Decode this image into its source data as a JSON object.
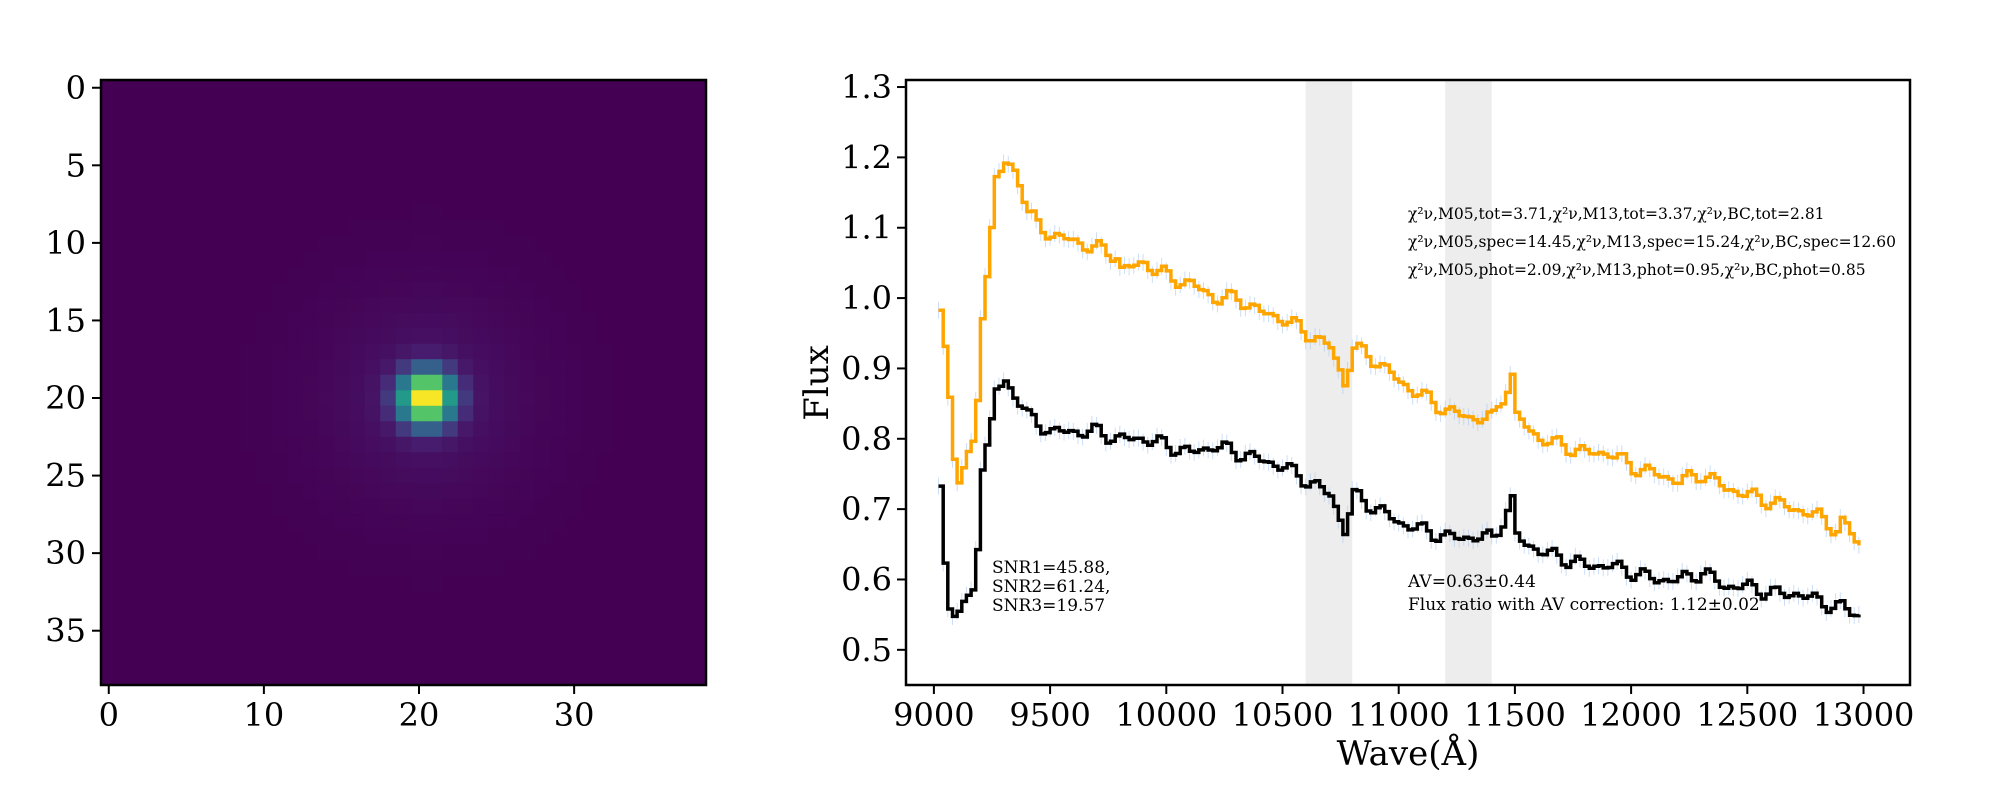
{
  "colors": {
    "model_a": "#ffa500",
    "model_b": "#000000",
    "errorbar": "#a8c8f0",
    "band": "#d3d3d3",
    "viridis_low": "#440154",
    "viridis_high": "#fde725"
  },
  "chart_data": [
    {
      "type": "heatmap",
      "colormap": "viridis",
      "size": [
        39,
        39
      ],
      "center": [
        20.5,
        20
      ],
      "xticks": [
        "0",
        "10",
        "20",
        "30"
      ],
      "yticks": [
        "0",
        "5",
        "10",
        "15",
        "20",
        "25",
        "30",
        "35"
      ],
      "xlim": [
        -0.5,
        38.5
      ],
      "ylim": [
        38.5,
        -0.5
      ]
    },
    {
      "type": "line",
      "step": true,
      "xlabel": "Wave(Å)",
      "ylabel": "Flux",
      "xlim": [
        8880,
        13200
      ],
      "ylim": [
        0.45,
        1.31
      ],
      "xticks": [
        "9000",
        "9500",
        "10000",
        "10500",
        "11000",
        "11500",
        "12000",
        "12500",
        "13000"
      ],
      "yticks": [
        "0.5",
        "0.6",
        "0.7",
        "0.8",
        "0.9",
        "1.0",
        "1.1",
        "1.2",
        "1.3"
      ],
      "shaded_bands": [
        [
          10600,
          10800
        ],
        [
          11200,
          11400
        ]
      ],
      "series": [
        {
          "color": "orange",
          "x": [
            9020,
            9050,
            9090,
            9130,
            9170,
            9200,
            9230,
            9260,
            9300,
            9350,
            9400,
            9450,
            9500,
            9600,
            9700,
            9780,
            9800,
            9900,
            10000,
            10100,
            10200,
            10300,
            10400,
            10500,
            10600,
            10700,
            10760,
            10800,
            10900,
            11000,
            11100,
            11200,
            11300,
            11400,
            11480,
            11500,
            11600,
            11700,
            11800,
            11900,
            12000,
            12100,
            12200,
            12300,
            12400,
            12500,
            12600,
            12700,
            12800,
            12880,
            12900,
            12980
          ],
          "y": [
            0.98,
            0.9,
            0.74,
            0.76,
            0.8,
            0.98,
            1.06,
            1.17,
            1.19,
            1.18,
            1.12,
            1.1,
            1.09,
            1.08,
            1.07,
            1.06,
            1.04,
            1.05,
            1.03,
            1.02,
            1.0,
            1.0,
            0.98,
            0.97,
            0.95,
            0.93,
            0.88,
            0.93,
            0.91,
            0.88,
            0.86,
            0.84,
            0.83,
            0.83,
            0.89,
            0.83,
            0.8,
            0.79,
            0.78,
            0.78,
            0.76,
            0.75,
            0.74,
            0.75,
            0.73,
            0.72,
            0.71,
            0.7,
            0.69,
            0.67,
            0.68,
            0.65
          ]
        },
        {
          "color": "black",
          "x": [
            9020,
            9050,
            9090,
            9130,
            9170,
            9200,
            9230,
            9260,
            9300,
            9350,
            9400,
            9450,
            9500,
            9600,
            9700,
            9780,
            9800,
            9900,
            10000,
            10100,
            10200,
            10300,
            10400,
            10500,
            10600,
            10700,
            10760,
            10800,
            10900,
            11000,
            11100,
            11200,
            11300,
            11400,
            11480,
            11500,
            11600,
            11700,
            11800,
            11900,
            12000,
            12100,
            12200,
            12300,
            12400,
            12500,
            12600,
            12700,
            12800,
            12880,
            12900,
            12980
          ],
          "y": [
            0.73,
            0.57,
            0.55,
            0.56,
            0.6,
            0.76,
            0.8,
            0.87,
            0.88,
            0.86,
            0.83,
            0.82,
            0.81,
            0.81,
            0.81,
            0.8,
            0.8,
            0.8,
            0.79,
            0.78,
            0.79,
            0.78,
            0.77,
            0.76,
            0.74,
            0.72,
            0.67,
            0.72,
            0.7,
            0.68,
            0.67,
            0.66,
            0.66,
            0.66,
            0.71,
            0.66,
            0.64,
            0.63,
            0.62,
            0.62,
            0.61,
            0.6,
            0.6,
            0.61,
            0.59,
            0.59,
            0.58,
            0.58,
            0.57,
            0.56,
            0.56,
            0.55
          ]
        }
      ],
      "annotations": {
        "chi2_tot": "χ²ν,M05,tot=3.71,χ²ν,M13,tot=3.37,χ²ν,BC,tot=2.81",
        "chi2_spec": "χ²ν,M05,spec=14.45,χ²ν,M13,spec=15.24,χ²ν,BC,spec=12.60",
        "chi2_phot": "χ²ν,M05,phot=2.09,χ²ν,M13,phot=0.95,χ²ν,BC,phot=0.85",
        "snr1": "SNR1=45.88,",
        "snr2": "SNR2=61.24,",
        "snr3": "SNR3=19.57",
        "av": "AV=0.63±0.44",
        "flux_ratio": "Flux ratio with AV correction: 1.12±0.02"
      }
    }
  ]
}
